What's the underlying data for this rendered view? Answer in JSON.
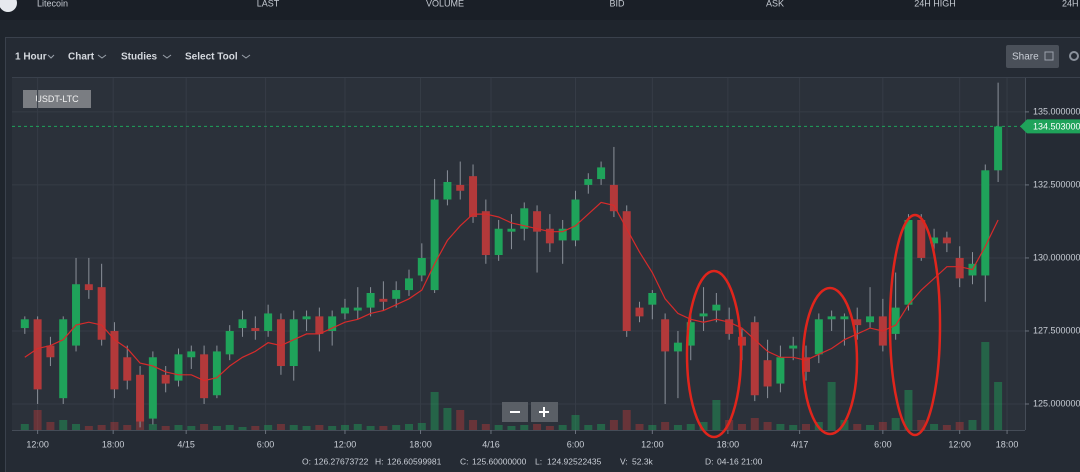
{
  "top_bar": {
    "brand": "Litecoin",
    "columns": [
      "LAST",
      "VOLUME",
      "BID",
      "ASK",
      "24H HIGH",
      "24H"
    ]
  },
  "toolbar": {
    "items": [
      "1 Hour",
      "Chart",
      "Studies",
      "Select Tool"
    ],
    "share": "Share"
  },
  "info_bar": [
    {
      "label": "O:",
      "value": "126.27673722"
    },
    {
      "label": "H:",
      "value": "126.60599981"
    },
    {
      "label": "C:",
      "value": "125.60000000"
    },
    {
      "label": "L:",
      "value": "124.92522435"
    },
    {
      "label": "V:",
      "value": "52.3k"
    },
    {
      "label": "D:",
      "value": "04-16 21:00"
    }
  ],
  "chart_data": {
    "type": "candlestick",
    "symbol_label": "USDT-LTC",
    "up_color": "#1fa35a",
    "down_color": "#b3393a",
    "ma_color": "#d62b2b",
    "x": [
      0,
      1,
      2,
      3,
      4,
      5,
      6,
      7,
      8,
      9,
      10,
      11,
      12,
      13,
      14,
      15,
      16,
      17,
      18,
      19,
      20,
      21,
      22,
      23,
      24,
      25,
      26,
      27,
      28,
      29,
      30,
      31,
      32,
      33,
      34,
      35,
      36,
      37,
      38,
      39,
      40,
      41,
      42,
      43,
      44,
      45,
      46,
      47,
      48,
      49,
      50,
      51,
      52,
      53,
      54,
      55,
      56,
      57,
      58,
      59,
      60,
      61,
      62,
      63,
      64,
      65,
      66,
      67,
      68,
      69,
      70,
      71,
      72,
      73,
      74,
      75,
      76
    ],
    "open": [
      127.6,
      127.9,
      127.0,
      125.2,
      127.0,
      129.1,
      129.0,
      127.5,
      126.6,
      126.0,
      124.5,
      126.0,
      125.8,
      126.6,
      126.7,
      125.3,
      126.7,
      127.6,
      127.6,
      127.5,
      127.9,
      126.3,
      127.9,
      128.0,
      127.5,
      128.1,
      128.2,
      128.3,
      128.6,
      128.6,
      128.9,
      129.4,
      128.9,
      132.0,
      132.5,
      132.8,
      131.6,
      130.1,
      130.9,
      131.0,
      131.6,
      131.0,
      130.6,
      130.6,
      132.5,
      132.7,
      132.5,
      131.6,
      128.3,
      128.4,
      127.9,
      126.8,
      127.0,
      128.0,
      128.2,
      127.9,
      127.3,
      127.8,
      126.5,
      125.7,
      126.9,
      126.6,
      126.7,
      127.9,
      127.9,
      127.9,
      127.8,
      128.0,
      127.4,
      128.4,
      131.3,
      130.5,
      130.7,
      130.0,
      129.4,
      129.4,
      133.0
    ],
    "high": [
      128.0,
      128.0,
      127.3,
      128.0,
      130.0,
      130.0,
      129.8,
      127.8,
      127.0,
      126.3,
      126.8,
      126.3,
      126.9,
      127.0,
      127.0,
      127.0,
      127.7,
      128.2,
      128.0,
      128.4,
      128.1,
      128.2,
      128.2,
      128.3,
      128.2,
      128.6,
      129.0,
      129.0,
      129.2,
      129.2,
      129.6,
      130.5,
      132.7,
      133.0,
      133.3,
      133.2,
      132.0,
      131.3,
      131.5,
      131.9,
      131.8,
      131.5,
      131.3,
      132.3,
      132.9,
      133.3,
      133.8,
      131.8,
      128.5,
      128.9,
      128.1,
      127.5,
      128.2,
      129.0,
      128.8,
      128.3,
      127.6,
      128.0,
      127.2,
      127.0,
      127.3,
      127.0,
      128.1,
      128.2,
      128.1,
      128.3,
      129.0,
      128.6,
      129.5,
      131.5,
      131.5,
      131.0,
      130.9,
      130.4,
      130.2,
      133.2,
      136.0
    ],
    "low": [
      127.4,
      125.0,
      126.3,
      125.0,
      126.8,
      128.6,
      127.0,
      125.2,
      125.5,
      124.2,
      124.3,
      125.4,
      125.6,
      126.2,
      125.0,
      125.2,
      126.5,
      127.3,
      127.2,
      127.3,
      126.0,
      125.8,
      127.5,
      126.8,
      127.0,
      127.9,
      127.9,
      128.0,
      128.2,
      128.3,
      128.7,
      129.2,
      128.8,
      131.8,
      132.0,
      131.2,
      129.8,
      129.9,
      130.3,
      130.6,
      129.5,
      130.2,
      129.8,
      130.4,
      132.2,
      132.5,
      131.4,
      127.3,
      127.8,
      127.9,
      125.0,
      125.2,
      126.5,
      127.5,
      127.8,
      127.2,
      126.5,
      125.1,
      125.2,
      125.4,
      126.5,
      125.8,
      126.4,
      127.5,
      127.0,
      127.2,
      127.6,
      126.8,
      127.2,
      128.2,
      129.9,
      130.0,
      130.2,
      129.0,
      129.1,
      128.5,
      132.6
    ],
    "close": [
      127.9,
      125.5,
      126.6,
      127.9,
      129.1,
      128.9,
      127.2,
      125.5,
      125.8,
      124.4,
      126.6,
      125.7,
      126.7,
      126.8,
      125.2,
      126.8,
      127.5,
      127.9,
      127.5,
      128.1,
      126.3,
      127.9,
      128.0,
      127.4,
      128.0,
      128.3,
      128.3,
      128.8,
      128.5,
      128.9,
      129.3,
      130.0,
      132.0,
      132.6,
      132.3,
      131.4,
      130.1,
      131.0,
      131.0,
      131.7,
      130.9,
      130.5,
      131.0,
      132.0,
      132.7,
      133.1,
      131.6,
      127.5,
      128.0,
      128.8,
      126.8,
      127.1,
      127.8,
      128.1,
      128.4,
      127.4,
      127.0,
      125.3,
      125.6,
      126.6,
      127.0,
      126.1,
      127.9,
      128.0,
      128.0,
      127.7,
      128.0,
      127.0,
      128.3,
      131.3,
      130.0,
      130.7,
      130.5,
      129.3,
      129.8,
      133.0,
      134.5
    ],
    "volume": [
      6,
      20,
      8,
      10,
      6,
      4,
      5,
      8,
      5,
      18,
      6,
      4,
      5,
      4,
      6,
      4,
      5,
      3,
      4,
      5,
      6,
      5,
      4,
      5,
      4,
      5,
      6,
      4,
      4,
      5,
      6,
      7,
      38,
      22,
      20,
      10,
      6,
      5,
      4,
      5,
      6,
      4,
      5,
      15,
      5,
      6,
      10,
      20,
      6,
      5,
      8,
      5,
      6,
      8,
      30,
      10,
      6,
      12,
      8,
      6,
      5,
      6,
      8,
      48,
      10,
      6,
      5,
      8,
      12,
      40,
      10,
      6,
      5,
      8,
      10,
      88,
      48
    ],
    "volume_lim": [
      0,
      100
    ],
    "ma": [
      126.6,
      126.9,
      127.0,
      127.2,
      127.7,
      127.8,
      127.7,
      127.2,
      126.9,
      126.4,
      126.3,
      126.1,
      126.0,
      126.0,
      125.8,
      125.9,
      126.3,
      126.6,
      126.8,
      127.1,
      127.0,
      127.2,
      127.4,
      127.4,
      127.6,
      127.8,
      127.9,
      128.1,
      128.2,
      128.4,
      128.6,
      128.9,
      129.8,
      130.6,
      131.1,
      131.5,
      131.5,
      131.4,
      131.2,
      131.1,
      131.0,
      130.9,
      130.9,
      131.1,
      131.5,
      131.9,
      131.8,
      131.0,
      130.2,
      129.5,
      128.6,
      128.1,
      127.9,
      127.8,
      127.9,
      127.8,
      127.6,
      127.2,
      126.8,
      126.6,
      126.6,
      126.5,
      126.7,
      126.9,
      127.2,
      127.4,
      127.6,
      127.5,
      127.7,
      128.4,
      128.9,
      129.3,
      129.7,
      129.7,
      129.6,
      130.4,
      131.3
    ],
    "xlim": [
      -1.0,
      78.1
    ],
    "xticks": [
      {
        "value": 1.0,
        "label": "12:00"
      },
      {
        "value": 6.9,
        "label": "18:00"
      },
      {
        "value": 12.6,
        "label": "4/15"
      },
      {
        "value": 18.8,
        "label": "6:00"
      },
      {
        "value": 25.0,
        "label": "12:00"
      },
      {
        "value": 30.9,
        "label": "18:00"
      },
      {
        "value": 36.4,
        "label": "4/16"
      },
      {
        "value": 43.0,
        "label": "6:00"
      },
      {
        "value": 49.0,
        "label": "12:00"
      },
      {
        "value": 54.9,
        "label": "18:00"
      },
      {
        "value": 60.5,
        "label": "4/17"
      },
      {
        "value": 67.0,
        "label": "6:00"
      },
      {
        "value": 73.0,
        "label": "12:00"
      },
      {
        "value": 76.7,
        "label": "18:00"
      }
    ],
    "ylim": [
      124.11,
      136.16
    ],
    "yticks": [
      {
        "value": 135,
        "label": "135.000000"
      },
      {
        "value": 132.5,
        "label": "132.500000"
      },
      {
        "value": 130,
        "label": "130.000000"
      },
      {
        "value": 127.5,
        "label": "127.500000"
      },
      {
        "value": 125,
        "label": "125.000000"
      }
    ],
    "grid": true,
    "last_price": {
      "value": 134.503,
      "label": "134.503000"
    }
  }
}
